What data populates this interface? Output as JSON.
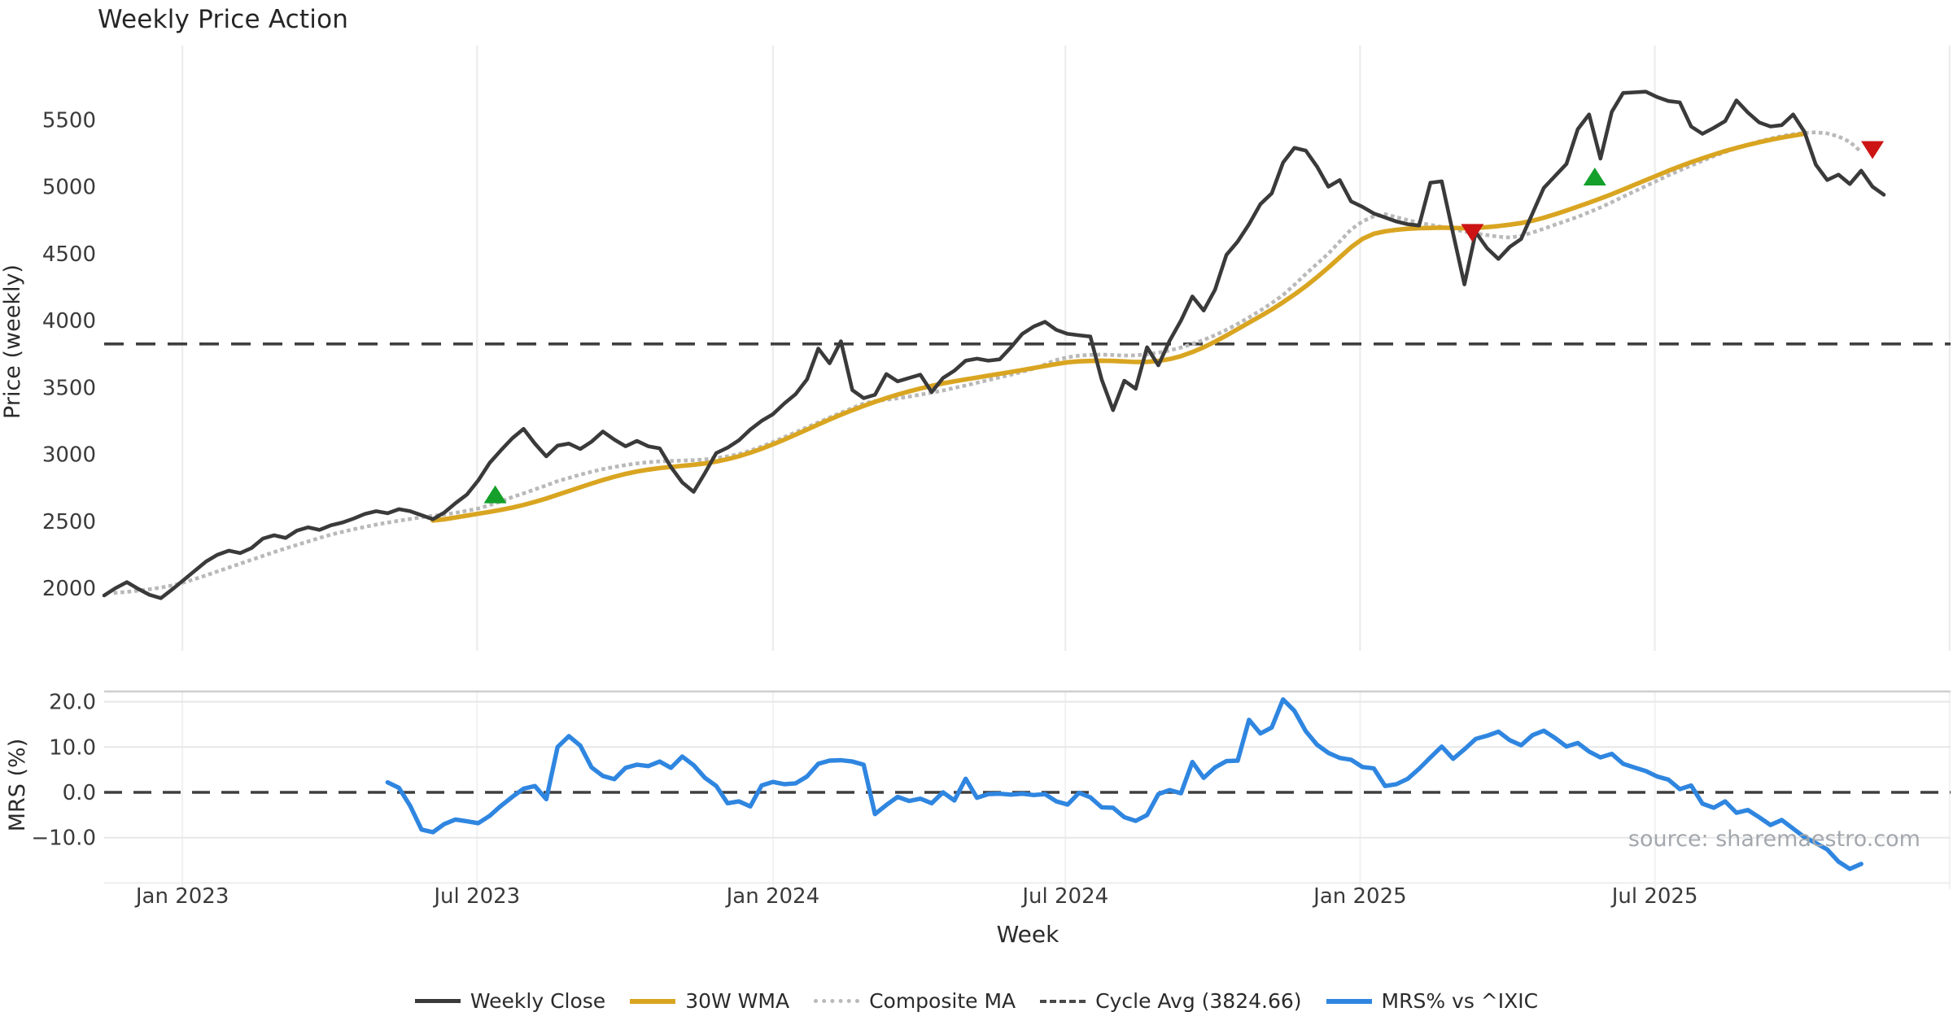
{
  "title": "Weekly Price Action",
  "source_note": "source: sharemaestro.com",
  "axes": {
    "price_label": "Price (weekly)",
    "mrs_label": "MRS (%)",
    "x_label": "Week",
    "price_ticks": [
      2000,
      2500,
      3000,
      3500,
      4000,
      4500,
      5000,
      5500
    ],
    "mrs_ticks": [
      {
        "label": "20.0",
        "value": 20
      },
      {
        "label": "10.0",
        "value": 10
      },
      {
        "label": "0.0",
        "value": 0
      },
      {
        "label": "−10.0",
        "value": -10
      }
    ],
    "x_ticks": [
      {
        "label": "Jan 2023",
        "week": 6.9
      },
      {
        "label": "Jul 2023",
        "week": 32.9
      },
      {
        "label": "Jan 2024",
        "week": 59.0
      },
      {
        "label": "Jul 2024",
        "week": 84.8
      },
      {
        "label": "Jan 2025",
        "week": 110.8
      },
      {
        "label": "Jul 2025",
        "week": 136.8
      }
    ],
    "extra_gridline_week": 162.8
  },
  "legend": {
    "items": [
      {
        "label": "Weekly Close",
        "color": "#3a3a3a",
        "style": "solid",
        "thickness": 5
      },
      {
        "label": "30W WMA",
        "color": "#d9a521",
        "style": "solid",
        "thickness": 6
      },
      {
        "label": "Composite MA",
        "color": "#b9b9b9",
        "style": "dotted",
        "thickness": 5
      },
      {
        "label": "Cycle Avg (3824.66)",
        "color": "#4a4a4a",
        "style": "dashed",
        "thickness": 4
      },
      {
        "label": "MRS% vs ^IXIC",
        "color": "#2f86e0",
        "style": "solid",
        "thickness": 6
      }
    ]
  },
  "chart_data": [
    {
      "panel": "price",
      "type": "line",
      "title": "Weekly Price Action",
      "ylabel": "Price (weekly)",
      "ylim": [
        1520,
        6050
      ],
      "x_unit": "week_index_from_mid_Nov_2022",
      "cycle_avg": 3824.66,
      "series": [
        {
          "name": "Weekly Close",
          "color": "#3a3a3a",
          "start_week": 0,
          "values": [
            1945,
            2000,
            2045,
            1995,
            1950,
            1925,
            1990,
            2060,
            2130,
            2200,
            2250,
            2280,
            2262,
            2300,
            2370,
            2395,
            2375,
            2430,
            2455,
            2435,
            2470,
            2490,
            2520,
            2555,
            2575,
            2560,
            2590,
            2575,
            2545,
            2515,
            2565,
            2635,
            2700,
            2805,
            2935,
            3030,
            3120,
            3190,
            3080,
            2985,
            3065,
            3080,
            3040,
            3095,
            3170,
            3110,
            3060,
            3100,
            3060,
            3045,
            2905,
            2790,
            2720,
            2860,
            3010,
            3050,
            3105,
            3185,
            3250,
            3300,
            3380,
            3450,
            3560,
            3790,
            3680,
            3845,
            3480,
            3420,
            3445,
            3600,
            3545,
            3570,
            3595,
            3465,
            3570,
            3625,
            3700,
            3715,
            3700,
            3710,
            3800,
            3900,
            3955,
            3990,
            3930,
            3900,
            3890,
            3880,
            3560,
            3330,
            3550,
            3490,
            3800,
            3665,
            3850,
            4000,
            4180,
            4075,
            4230,
            4490,
            4590,
            4720,
            4870,
            4950,
            5180,
            5290,
            5270,
            5150,
            5000,
            5050,
            4890,
            4850,
            4800,
            4770,
            4740,
            4720,
            4710,
            5030,
            5040,
            4650,
            4270,
            4660,
            4540,
            4460,
            4550,
            4610,
            4800,
            4990,
            5080,
            5170,
            5430,
            5540,
            5210,
            5560,
            5700,
            5705,
            5710,
            5670,
            5640,
            5630,
            5450,
            5395,
            5440,
            5490,
            5645,
            5555,
            5480,
            5450,
            5460,
            5540,
            5410,
            5165,
            5050,
            5090,
            5020,
            5120,
            5000,
            4940
          ]
        },
        {
          "name": "30W WMA",
          "color": "#d9a521",
          "start_week": 29,
          "values": [
            2505,
            2515,
            2528,
            2542,
            2556,
            2570,
            2585,
            2602,
            2622,
            2645,
            2670,
            2698,
            2726,
            2754,
            2782,
            2808,
            2832,
            2854,
            2872,
            2886,
            2897,
            2906,
            2914,
            2922,
            2932,
            2946,
            2964,
            2986,
            3012,
            3042,
            3075,
            3110,
            3147,
            3185,
            3223,
            3260,
            3296,
            3330,
            3362,
            3392,
            3420,
            3446,
            3470,
            3492,
            3512,
            3530,
            3546,
            3560,
            3574,
            3588,
            3602,
            3616,
            3630,
            3645,
            3660,
            3675,
            3688,
            3695,
            3698,
            3700,
            3698,
            3694,
            3690,
            3691,
            3698,
            3712,
            3734,
            3764,
            3800,
            3842,
            3888,
            3936,
            3984,
            4032,
            4082,
            4136,
            4194,
            4256,
            4324,
            4396,
            4472,
            4548,
            4610,
            4648,
            4666,
            4678,
            4686,
            4690,
            4692,
            4694,
            4692,
            4690,
            4692,
            4698,
            4706,
            4716,
            4728,
            4746,
            4768,
            4794,
            4822,
            4851,
            4881,
            4912,
            4944,
            4979,
            5014,
            5049,
            5084,
            5119,
            5152,
            5183,
            5212,
            5240,
            5266,
            5290,
            5312,
            5332,
            5350,
            5367,
            5382,
            5396
          ]
        },
        {
          "name": "Composite MA",
          "color": "#b9b9b9",
          "start_week": 1,
          "values": [
            1965,
            1972,
            1982,
            1992,
            2004,
            2020,
            2042,
            2068,
            2096,
            2125,
            2154,
            2183,
            2212,
            2241,
            2270,
            2297,
            2323,
            2349,
            2375,
            2400,
            2420,
            2440,
            2458,
            2475,
            2490,
            2504,
            2517,
            2530,
            2540,
            2550,
            2563,
            2578,
            2595,
            2620,
            2648,
            2680,
            2708,
            2738,
            2768,
            2800,
            2824,
            2848,
            2870,
            2890,
            2906,
            2920,
            2932,
            2941,
            2947,
            2951,
            2953,
            2956,
            2962,
            2972,
            2985,
            3002,
            3028,
            3058,
            3092,
            3128,
            3165,
            3202,
            3239,
            3275,
            3311,
            3346,
            3380,
            3398,
            3408,
            3418,
            3431,
            3446,
            3461,
            3477,
            3496,
            3515,
            3535,
            3555,
            3575,
            3595,
            3617,
            3640,
            3672,
            3705,
            3725,
            3738,
            3743,
            3745,
            3742,
            3738,
            3740,
            3748,
            3760,
            3776,
            3798,
            3825,
            3855,
            3890,
            3930,
            3975,
            4023,
            4075,
            4130,
            4190,
            4266,
            4348,
            4424,
            4500,
            4590,
            4680,
            4740,
            4780,
            4795,
            4772,
            4750,
            4730,
            4715,
            4700,
            4682,
            4665,
            4650,
            4638,
            4626,
            4620,
            4632,
            4658,
            4686,
            4716,
            4745,
            4775,
            4809,
            4845,
            4884,
            4925,
            4965,
            5005,
            5045,
            5085,
            5122,
            5158,
            5193,
            5228,
            5259,
            5288,
            5314,
            5338,
            5359,
            5378,
            5392,
            5402,
            5406,
            5398,
            5375,
            5335,
            5260
          ]
        }
      ],
      "markers": {
        "buy": [
          {
            "week": 34.5,
            "price": 2695
          },
          {
            "week": 131.5,
            "price": 5070
          }
        ],
        "sell": [
          {
            "week": 120.7,
            "price": 4660
          },
          {
            "week": 156.0,
            "price": 5280
          }
        ],
        "buy_color": "#14a02a",
        "sell_color": "#cc1414"
      }
    },
    {
      "panel": "mrs",
      "type": "line",
      "ylabel": "MRS (%)",
      "ylim": [
        -22,
        22.5
      ],
      "zero_line": 0,
      "series": [
        {
          "name": "MRS% vs ^IXIC",
          "color": "#2f86e0",
          "start_week": 25,
          "values": [
            2.2,
            1.0,
            -3.0,
            -8.2,
            -8.8,
            -7.0,
            -6.0,
            -6.4,
            -6.8,
            -5.2,
            -3.0,
            -1.0,
            0.8,
            1.4,
            -1.5,
            10.0,
            12.4,
            10.3,
            5.5,
            3.6,
            2.9,
            5.4,
            6.1,
            5.8,
            6.8,
            5.4,
            7.9,
            6.0,
            3.2,
            1.4,
            -2.4,
            -2.0,
            -3.1,
            1.5,
            2.3,
            1.8,
            2.0,
            3.5,
            6.3,
            7.0,
            7.1,
            6.8,
            6.1,
            -4.8,
            -2.8,
            -1.0,
            -1.9,
            -1.4,
            -2.4,
            0.0,
            -1.8,
            3.0,
            -1.2,
            -0.4,
            -0.3,
            -0.5,
            -0.3,
            -0.6,
            -0.4,
            -2.0,
            -2.7,
            -0.1,
            -1.1,
            -3.3,
            -3.4,
            -5.5,
            -6.3,
            -5.0,
            -0.4,
            0.5,
            -0.2,
            6.7,
            3.2,
            5.5,
            6.9,
            7.0,
            16.0,
            13.0,
            14.3,
            20.5,
            18.0,
            13.5,
            10.5,
            8.7,
            7.6,
            7.2,
            5.6,
            5.3,
            1.4,
            1.8,
            3.0,
            5.2,
            7.7,
            10.1,
            7.4,
            9.5,
            11.8,
            12.5,
            13.4,
            11.5,
            10.4,
            12.6,
            13.6,
            12.0,
            10.1,
            10.9,
            9.0,
            7.7,
            8.5,
            6.3,
            5.5,
            4.7,
            3.5,
            2.8,
            0.7,
            1.5,
            -2.5,
            -3.4,
            -2.0,
            -4.5,
            -3.9,
            -5.5,
            -7.2,
            -6.1,
            -8.0,
            -9.9,
            -11.2,
            -12.6,
            -15.3,
            -16.9,
            -15.8
          ]
        }
      ]
    }
  ]
}
